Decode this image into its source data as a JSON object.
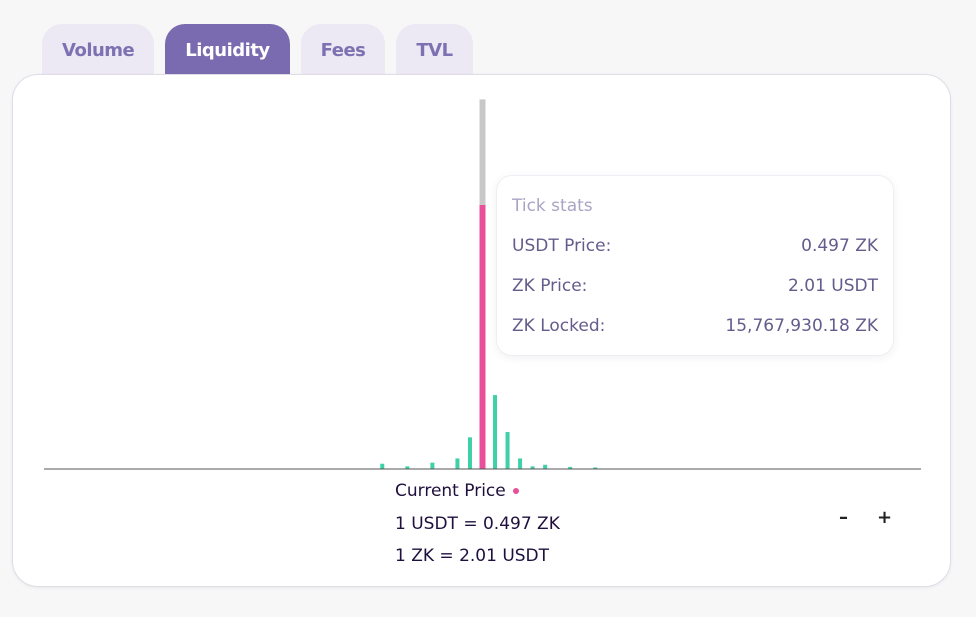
{
  "tabs": [
    {
      "label": "Volume",
      "active": false
    },
    {
      "label": "Liquidity",
      "active": true
    },
    {
      "label": "Fees",
      "active": false
    },
    {
      "label": "TVL",
      "active": false
    }
  ],
  "tooltip": {
    "title": "Tick stats",
    "rows": [
      {
        "label": "USDT Price:",
        "value": "0.497 ZK"
      },
      {
        "label": "ZK Price:",
        "value": "2.01 USDT"
      },
      {
        "label": "ZK Locked:",
        "value": "15,767,930.18 ZK"
      }
    ]
  },
  "zoom": {
    "out_label": "–",
    "in_label": "+"
  },
  "current_price": {
    "label": "Current Price",
    "line1": "1 USDT = 0.497 ZK",
    "line2": "1 ZK = 2.01 USDT"
  },
  "colors": {
    "active_tick": "#e8509a",
    "ticks": "#3ed0a6",
    "highlight": "#c8c8c8",
    "axis": "#555555"
  },
  "chart_data": {
    "type": "bar",
    "x": [
      0.41,
      0.43,
      0.45,
      0.47,
      0.48,
      0.49,
      0.5,
      0.51,
      0.52,
      0.53,
      0.54,
      0.56,
      0.58
    ],
    "values": [
      0.01,
      0.005,
      0.012,
      0.02,
      0.06,
      0.5,
      0.14,
      0.07,
      0.02,
      0.005,
      0.008,
      0.004,
      0.003
    ],
    "highlight_index": 5,
    "highlight_full": 0.7,
    "current_price_x": 0.497
  }
}
